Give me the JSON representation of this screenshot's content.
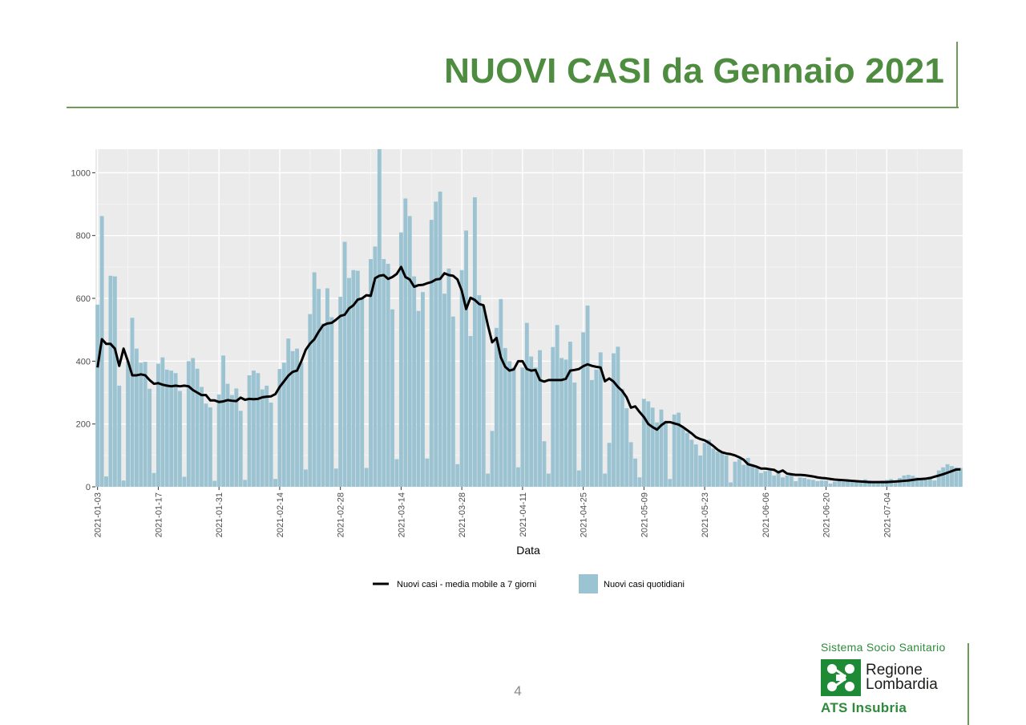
{
  "header": {
    "title": "NUOVI CASI da Gennaio 2021"
  },
  "footer": {
    "page_number": "4",
    "system_label": "Sistema Socio Sanitario",
    "region_line1": "Regione",
    "region_line2": "Lombardia",
    "agency": "ATS Insubria"
  },
  "colors": {
    "accent": "#4e8c3f",
    "bar": "#9bc3d1",
    "line": "#000000",
    "panel": "#ebebeb"
  },
  "chart_data": {
    "type": "bar",
    "title": "",
    "xlabel": "Data",
    "ylabel": "",
    "ylim": [
      0,
      1075
    ],
    "y_ticks": [
      "0",
      "200",
      "400",
      "600",
      "800",
      "1000"
    ],
    "x_ticks": [
      "2021-01-03",
      "2021-01-17",
      "2021-01-31",
      "2021-02-14",
      "2021-02-28",
      "2021-03-14",
      "2021-03-28",
      "2021-04-11",
      "2021-04-25",
      "2021-05-09",
      "2021-05-23",
      "2021-06-06",
      "2021-06-20",
      "2021-07-04"
    ],
    "legend_position": "bottom",
    "grid": true,
    "start_date": "2021-01-03",
    "series": [
      {
        "name": "Nuovi casi quotidiani",
        "type": "bar",
        "values": [
          580,
          862,
          33,
          672,
          670,
          322,
          20,
          400,
          538,
          440,
          395,
          398,
          312,
          44,
          392,
          412,
          373,
          370,
          362,
          305,
          32,
          400,
          410,
          376,
          318,
          265,
          253,
          19,
          294,
          418,
          328,
          292,
          313,
          242,
          22,
          355,
          370,
          362,
          310,
          322,
          268,
          25,
          375,
          395,
          472,
          432,
          440,
          395,
          55,
          550,
          683,
          630,
          520,
          632,
          540,
          58,
          605,
          780,
          665,
          690,
          688,
          600,
          60,
          725,
          765,
          1075,
          725,
          710,
          565,
          88,
          810,
          918,
          862,
          670,
          560,
          620,
          90,
          850,
          908,
          940,
          615,
          695,
          542,
          72,
          690,
          816,
          480,
          922,
          610,
          575,
          42,
          178,
          506,
          598,
          442,
          400,
          380,
          62,
          380,
          522,
          415,
          380,
          435,
          145,
          42,
          445,
          515,
          410,
          405,
          462,
          332,
          52,
          492,
          577,
          340,
          373,
          428,
          42,
          140,
          425,
          446,
          312,
          250,
          142,
          90,
          30,
          280,
          272,
          252,
          205,
          246,
          210,
          25,
          230,
          236,
          190,
          172,
          150,
          135,
          100,
          140,
          150,
          122,
          112,
          108,
          100,
          14,
          80,
          88,
          70,
          92,
          72,
          60,
          44,
          50,
          52,
          36,
          52,
          30,
          36,
          40,
          18,
          30,
          28,
          24,
          22,
          18,
          20,
          20,
          10,
          16,
          25,
          16,
          18,
          22,
          16,
          14,
          24,
          20,
          18,
          14,
          20,
          22,
          25,
          18,
          28,
          36,
          38,
          35,
          30,
          24,
          30,
          32,
          20,
          52,
          62,
          72,
          66,
          62,
          60
        ]
      },
      {
        "name": "Nuovi casi - media mobile a 7 giorni",
        "type": "line",
        "values": [
          380,
          470,
          455,
          455,
          440,
          385,
          440,
          400,
          355,
          355,
          358,
          355,
          340,
          328,
          330,
          325,
          322,
          320,
          322,
          320,
          322,
          320,
          308,
          300,
          292,
          292,
          275,
          275,
          270,
          272,
          276,
          274,
          273,
          284,
          277,
          280,
          279,
          280,
          285,
          287,
          288,
          295,
          318,
          336,
          354,
          366,
          370,
          400,
          436,
          456,
          470,
          494,
          514,
          520,
          522,
          532,
          544,
          548,
          568,
          578,
          596,
          600,
          610,
          608,
          664,
          672,
          674,
          662,
          668,
          678,
          700,
          668,
          660,
          637,
          642,
          643,
          648,
          652,
          660,
          662,
          680,
          674,
          672,
          660,
          624,
          566,
          602,
          595,
          582,
          578,
          515,
          460,
          474,
          412,
          382,
          370,
          374,
          400,
          400,
          375,
          370,
          372,
          340,
          335,
          340,
          340,
          340,
          340,
          344,
          370,
          372,
          375,
          384,
          390,
          385,
          382,
          380,
          336,
          345,
          335,
          318,
          305,
          285,
          252,
          256,
          238,
          222,
          200,
          190,
          182,
          196,
          206,
          206,
          202,
          198,
          190,
          180,
          170,
          158,
          152,
          148,
          140,
          130,
          118,
          110,
          106,
          104,
          100,
          94,
          86,
          72,
          68,
          64,
          58,
          58,
          56,
          54,
          46,
          52,
          42,
          40,
          38,
          38,
          37,
          35,
          33,
          30,
          28,
          27,
          25,
          23,
          22,
          21,
          20,
          19,
          18,
          17,
          16,
          15,
          15,
          15,
          15,
          15,
          16,
          17,
          18,
          19,
          20,
          22,
          24,
          25,
          26,
          28,
          32,
          36,
          40,
          45,
          50,
          55,
          56
        ]
      }
    ]
  }
}
